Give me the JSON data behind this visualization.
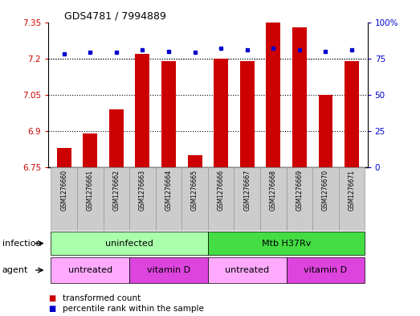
{
  "title": "GDS4781 / 7994889",
  "samples": [
    "GSM1276660",
    "GSM1276661",
    "GSM1276662",
    "GSM1276663",
    "GSM1276664",
    "GSM1276665",
    "GSM1276666",
    "GSM1276667",
    "GSM1276668",
    "GSM1276669",
    "GSM1276670",
    "GSM1276671"
  ],
  "transformed_count": [
    6.83,
    6.89,
    6.99,
    7.22,
    7.19,
    6.8,
    7.2,
    7.19,
    7.35,
    7.33,
    7.05,
    7.19
  ],
  "percentile_rank": [
    78,
    79,
    79,
    81,
    80,
    79,
    82,
    81,
    82,
    81,
    80,
    81
  ],
  "ylim_left": [
    6.75,
    7.35
  ],
  "ylim_right": [
    0,
    100
  ],
  "yticks_left": [
    6.75,
    6.9,
    7.05,
    7.2,
    7.35
  ],
  "yticks_right": [
    0,
    25,
    50,
    75,
    100
  ],
  "bar_color": "#cc0000",
  "dot_color": "#0000cc",
  "gridline_color": "#000000",
  "infection_labels": [
    {
      "text": "uninfected",
      "start": 0,
      "end": 5,
      "color": "#aaffaa"
    },
    {
      "text": "Mtb H37Rv",
      "start": 6,
      "end": 11,
      "color": "#44dd44"
    }
  ],
  "agent_labels": [
    {
      "text": "untreated",
      "start": 0,
      "end": 2,
      "color": "#ffaaff"
    },
    {
      "text": "vitamin D",
      "start": 3,
      "end": 5,
      "color": "#dd44dd"
    },
    {
      "text": "untreated",
      "start": 6,
      "end": 8,
      "color": "#ffaaff"
    },
    {
      "text": "vitamin D",
      "start": 9,
      "end": 11,
      "color": "#dd44dd"
    }
  ],
  "legend_items": [
    {
      "label": "transformed count",
      "color": "#cc0000"
    },
    {
      "label": "percentile rank within the sample",
      "color": "#0000cc"
    }
  ],
  "left_label_color": "#cc0000",
  "right_label_color": "#0000cc",
  "sample_bg_color": "#cccccc",
  "sample_border_color": "#999999"
}
